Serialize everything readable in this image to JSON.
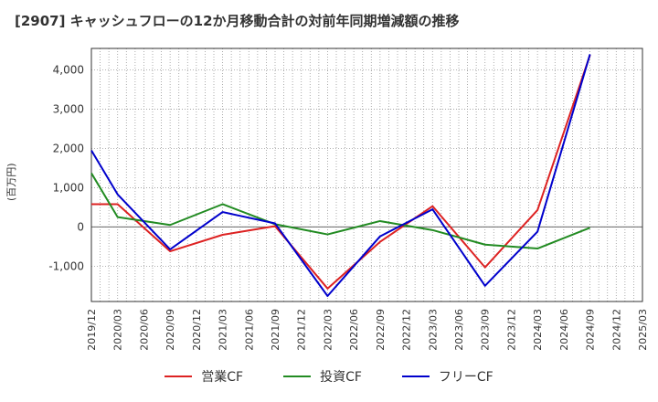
{
  "title": "[2907]  キャッシュフローの12か月移動合計の対前年同期増減額の推移",
  "ylabel": "(百万円)",
  "chart_data": {
    "type": "line",
    "title": "[2907]  キャッシュフローの12か月移動合計の対前年同期増減額の推移",
    "xlabel": "",
    "ylabel": "(百万円)",
    "categories": [
      "2019/12",
      "2020/03",
      "2020/06",
      "2020/09",
      "2020/12",
      "2021/03",
      "2021/06",
      "2021/09",
      "2021/12",
      "2022/03",
      "2022/06",
      "2022/09",
      "2022/12",
      "2023/03",
      "2023/06",
      "2023/09",
      "2023/12",
      "2024/03",
      "2024/06",
      "2024/09",
      "2024/12",
      "2025/03"
    ],
    "ylim": [
      -1900,
      4550
    ],
    "yticks": [
      -1000,
      0,
      1000,
      2000,
      3000,
      4000
    ],
    "ytick_labels": [
      "-1,000",
      "0",
      "1,000",
      "2,000",
      "3,000",
      "4,000"
    ],
    "grid": true,
    "legend_position": "bottom",
    "series": [
      {
        "name": "営業CF",
        "color": "#dd2222",
        "values": [
          580,
          580,
          null,
          -620,
          null,
          -200,
          null,
          20,
          null,
          -1570,
          null,
          -380,
          null,
          530,
          null,
          -1030,
          null,
          430,
          null,
          4380,
          null,
          null
        ]
      },
      {
        "name": "投資CF",
        "color": "#228b22",
        "values": [
          1370,
          250,
          null,
          50,
          null,
          580,
          null,
          70,
          null,
          -190,
          null,
          150,
          null,
          -80,
          null,
          -450,
          null,
          -550,
          null,
          -20,
          null,
          null
        ]
      },
      {
        "name": "フリーCF",
        "color": "#0000cc",
        "values": [
          1950,
          830,
          null,
          -570,
          null,
          380,
          null,
          90,
          null,
          -1760,
          null,
          -240,
          null,
          450,
          null,
          -1500,
          null,
          -120,
          null,
          4400,
          null,
          null
        ]
      }
    ]
  }
}
